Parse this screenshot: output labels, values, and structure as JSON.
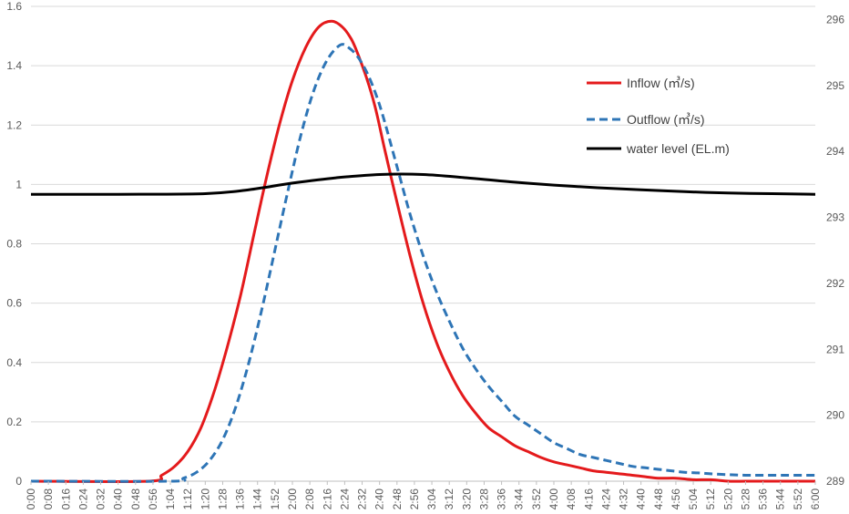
{
  "chart_data": {
    "type": "line",
    "title": "",
    "xlabel": "",
    "ylabel": "",
    "y2label": "",
    "ylim": [
      0,
      1.6
    ],
    "y2lim": [
      289,
      296.2
    ],
    "y_ticks": [
      "0",
      "0.2",
      "0.4",
      "0.6",
      "0.8",
      "1",
      "1.2",
      "1.4",
      "1.6"
    ],
    "y2_ticks": [
      "289",
      "290",
      "291",
      "292",
      "293",
      "294",
      "295",
      "296"
    ],
    "x_ticks": [
      "0:00",
      "0:08",
      "0:16",
      "0:24",
      "0:32",
      "0:40",
      "0:48",
      "0:56",
      "1:04",
      "1:12",
      "1:20",
      "1:28",
      "1:36",
      "1:44",
      "1:52",
      "2:00",
      "2:08",
      "2:16",
      "2:24",
      "2:32",
      "2:40",
      "2:48",
      "2:56",
      "3:04",
      "3:12",
      "3:20",
      "3:28",
      "3:36",
      "3:44",
      "3:52",
      "4:00",
      "4:08",
      "4:16",
      "4:24",
      "4:32",
      "4:40",
      "4:48",
      "4:56",
      "5:04",
      "5:12",
      "5:20",
      "5:28",
      "5:36",
      "5:44",
      "5:52",
      "6:00"
    ],
    "x_minutes": [
      0,
      56,
      64,
      72,
      80,
      88,
      96,
      104,
      112,
      120,
      128,
      136,
      144,
      152,
      160,
      168,
      176,
      184,
      192,
      200,
      208,
      216,
      224,
      232,
      240,
      248,
      256,
      264,
      272,
      280,
      288,
      296,
      304,
      312,
      320,
      328,
      336,
      344,
      352,
      360
    ],
    "series": [
      {
        "name": "Inflow (㎥/s)",
        "axis": "left",
        "color": "#e41a1c",
        "dash": "solid",
        "x": [
          0,
          54,
          60,
          66,
          72,
          78,
          84,
          90,
          96,
          102,
          108,
          114,
          120,
          126,
          132,
          138,
          143,
          147,
          150,
          154,
          158,
          162,
          168,
          174,
          180,
          186,
          192,
          198,
          204,
          210,
          216,
          222,
          228,
          234,
          240,
          246,
          252,
          258,
          264,
          270,
          276,
          282,
          288,
          296,
          304,
          312,
          320,
          328,
          336,
          346,
          356,
          360
        ],
        "values": [
          0,
          0,
          0.02,
          0.05,
          0.1,
          0.18,
          0.3,
          0.45,
          0.62,
          0.82,
          1.02,
          1.2,
          1.35,
          1.46,
          1.53,
          1.55,
          1.53,
          1.49,
          1.44,
          1.36,
          1.26,
          1.13,
          0.94,
          0.76,
          0.6,
          0.47,
          0.37,
          0.29,
          0.23,
          0.18,
          0.15,
          0.12,
          0.1,
          0.08,
          0.065,
          0.055,
          0.045,
          0.035,
          0.03,
          0.025,
          0.02,
          0.015,
          0.01,
          0.01,
          0.005,
          0.005,
          0,
          0,
          0,
          0,
          0,
          0
        ]
      },
      {
        "name": "Outflow (㎥/s)",
        "axis": "left",
        "color": "#2e75b6",
        "dash": "dashed",
        "x": [
          0,
          64,
          70,
          76,
          82,
          88,
          94,
          100,
          106,
          112,
          118,
          124,
          130,
          136,
          142,
          146,
          150,
          154,
          158,
          162,
          168,
          174,
          180,
          186,
          192,
          198,
          204,
          210,
          216,
          222,
          228,
          234,
          240,
          246,
          252,
          258,
          264,
          270,
          276,
          282,
          288,
          294,
          300,
          306,
          312,
          320,
          328,
          336,
          346,
          356,
          360
        ],
        "values": [
          0,
          0,
          0.01,
          0.03,
          0.07,
          0.14,
          0.25,
          0.4,
          0.58,
          0.78,
          0.98,
          1.17,
          1.32,
          1.42,
          1.47,
          1.46,
          1.43,
          1.38,
          1.31,
          1.22,
          1.06,
          0.9,
          0.76,
          0.64,
          0.54,
          0.45,
          0.38,
          0.32,
          0.27,
          0.22,
          0.19,
          0.16,
          0.13,
          0.11,
          0.09,
          0.08,
          0.07,
          0.06,
          0.05,
          0.045,
          0.04,
          0.035,
          0.03,
          0.028,
          0.025,
          0.022,
          0.02,
          0.02,
          0.02,
          0.02,
          0.02
        ]
      },
      {
        "name": "water level (EL.m)",
        "axis": "right",
        "color": "#000000",
        "dash": "solid",
        "x": [
          0,
          40,
          80,
          100,
          120,
          140,
          160,
          180,
          200,
          220,
          240,
          260,
          280,
          300,
          320,
          340,
          360
        ],
        "values": [
          293.35,
          293.35,
          293.36,
          293.42,
          293.52,
          293.6,
          293.65,
          293.65,
          293.6,
          293.54,
          293.49,
          293.45,
          293.42,
          293.39,
          293.37,
          293.36,
          293.35
        ]
      }
    ],
    "legend": "top-right",
    "grid": true
  }
}
